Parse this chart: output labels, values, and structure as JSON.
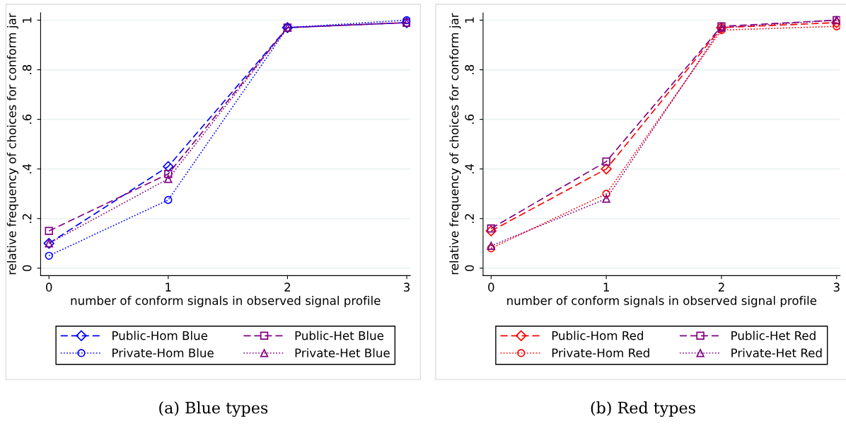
{
  "chart_data": [
    {
      "type": "line",
      "xlabel": "number of conform signals in observed signal profile",
      "ylabel": "relative frequency of choices for conform jar",
      "x": [
        0,
        1,
        2,
        3
      ],
      "xlim": [
        -0.07,
        3.03
      ],
      "xticks": [
        0,
        1,
        2,
        3
      ],
      "ylim": [
        -0.03,
        1.03
      ],
      "yticks": [
        0,
        {
          "value": 0.2,
          "label": ".2"
        },
        {
          "value": 0.4,
          "label": ".4"
        },
        {
          "value": 0.6,
          "label": ".6"
        },
        {
          "value": 0.8,
          "label": ".8"
        },
        1
      ],
      "grid": "y",
      "legend": "bottom",
      "annotations": [
        "(a) Blue types"
      ],
      "series": [
        {
          "name": "Public-Hom Blue",
          "color": "#0000ff",
          "marker": "diamond",
          "line_style": "dashed",
          "values": [
            0.1,
            0.41,
            0.97,
            0.99
          ]
        },
        {
          "name": "Public-Het Blue",
          "color": "#800080",
          "marker": "square",
          "line_style": "dashed",
          "values": [
            0.15,
            0.38,
            0.97,
            0.99
          ]
        },
        {
          "name": "Private-Hom Blue",
          "color": "#0000ff",
          "marker": "circle",
          "line_style": "dotted",
          "values": [
            0.05,
            0.275,
            0.97,
            1.0
          ]
        },
        {
          "name": "Private-Het Blue",
          "color": "#800080",
          "marker": "triangle",
          "line_style": "dotted",
          "values": [
            0.1,
            0.36,
            0.97,
            0.99
          ]
        }
      ]
    },
    {
      "type": "line",
      "xlabel": "number of conform signals in observed signal profile",
      "ylabel": "relative frequency of choices for conform jar",
      "x": [
        0,
        1,
        2,
        3
      ],
      "xlim": [
        -0.07,
        3.03
      ],
      "xticks": [
        0,
        1,
        2,
        3
      ],
      "ylim": [
        -0.03,
        1.03
      ],
      "yticks": [
        0,
        {
          "value": 0.2,
          "label": ".2"
        },
        {
          "value": 0.4,
          "label": ".4"
        },
        {
          "value": 0.6,
          "label": ".6"
        },
        {
          "value": 0.8,
          "label": ".8"
        },
        1
      ],
      "grid": "y",
      "legend": "bottom",
      "annotations": [
        "(b) Red types"
      ],
      "series": [
        {
          "name": "Public-Hom Red",
          "color": "#ff0000",
          "marker": "diamond",
          "line_style": "dashed",
          "values": [
            0.15,
            0.4,
            0.97,
            0.99
          ]
        },
        {
          "name": "Public-Het Red",
          "color": "#800080",
          "marker": "square",
          "line_style": "dashed",
          "values": [
            0.16,
            0.43,
            0.975,
            1.0
          ]
        },
        {
          "name": "Private-Hom Red",
          "color": "#ff0000",
          "marker": "circle",
          "line_style": "dotted",
          "values": [
            0.08,
            0.3,
            0.96,
            0.975
          ]
        },
        {
          "name": "Private-Het Red",
          "color": "#800080",
          "marker": "triangle",
          "line_style": "dotted",
          "values": [
            0.09,
            0.28,
            0.97,
            1.0
          ]
        }
      ]
    }
  ]
}
